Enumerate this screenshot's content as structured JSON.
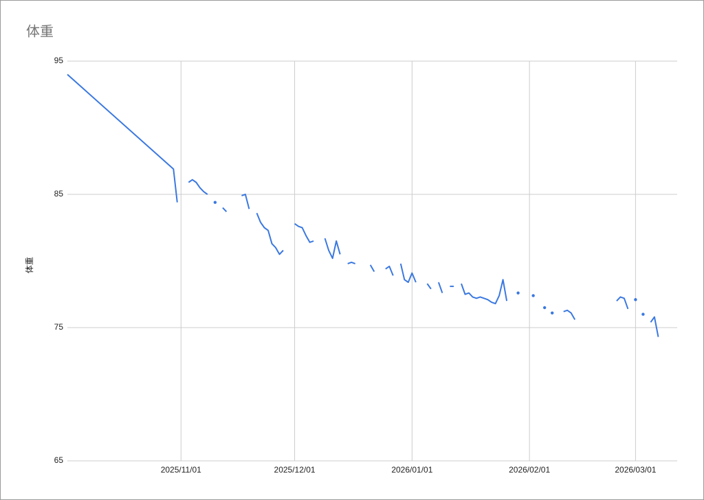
{
  "chart_data": {
    "type": "line",
    "title": "体重",
    "y_label": "体重",
    "x": [
      "2025/10/02",
      "2025/10/30",
      "2025/10/31",
      "2025/11/01",
      "2025/11/03",
      "2025/11/04",
      "2025/11/05",
      "2025/11/06",
      "2025/11/07",
      "2025/11/08",
      "2025/11/09",
      "2025/11/10",
      "2025/11/11",
      "2025/11/12",
      "2025/11/13",
      "2025/11/14",
      "2025/11/17",
      "2025/11/18",
      "2025/11/19",
      "2025/11/20",
      "2025/11/21",
      "2025/11/22",
      "2025/11/23",
      "2025/11/24",
      "2025/11/25",
      "2025/11/26",
      "2025/11/27",
      "2025/11/28",
      "2025/11/29",
      "2025/12/01",
      "2025/12/02",
      "2025/12/03",
      "2025/12/04",
      "2025/12/05",
      "2025/12/06",
      "2025/12/07",
      "2025/12/09",
      "2025/12/10",
      "2025/12/11",
      "2025/12/12",
      "2025/12/13",
      "2025/12/14",
      "2025/12/15",
      "2025/12/16",
      "2025/12/17",
      "2025/12/18",
      "2025/12/21",
      "2025/12/22",
      "2025/12/23",
      "2025/12/25",
      "2025/12/26",
      "2025/12/27",
      "2025/12/28",
      "2025/12/29",
      "2025/12/30",
      "2025/12/31",
      "2026/01/01",
      "2026/01/02",
      "2026/01/03",
      "2026/01/05",
      "2026/01/06",
      "2026/01/07",
      "2026/01/08",
      "2026/01/09",
      "2026/01/10",
      "2026/01/11",
      "2026/01/12",
      "2026/01/13",
      "2026/01/14",
      "2026/01/15",
      "2026/01/16",
      "2026/01/17",
      "2026/01/18",
      "2026/01/19",
      "2026/01/20",
      "2026/01/21",
      "2026/01/22",
      "2026/01/23",
      "2026/01/24",
      "2026/01/25",
      "2026/01/26",
      "2026/01/27",
      "2026/01/29",
      "2026/01/30",
      "2026/02/02",
      "2026/02/03",
      "2026/02/05",
      "2026/02/06",
      "2026/02/07",
      "2026/02/08",
      "2026/02/10",
      "2026/02/11",
      "2026/02/12",
      "2026/02/13",
      "2026/02/14",
      "2026/02/24",
      "2026/02/25",
      "2026/02/26",
      "2026/02/27",
      "2026/02/28",
      "2026/03/01",
      "2026/03/02",
      "2026/03/03",
      "2026/03/04",
      "2026/03/05",
      "2026/03/06",
      "2026/03/07"
    ],
    "series": [
      {
        "color": "#3a78e0",
        "values": [
          94.0,
          86.9,
          84.4,
          null,
          85.9,
          86.1,
          85.9,
          85.5,
          85.2,
          85.0,
          null,
          84.4,
          null,
          84.0,
          83.7,
          null,
          84.9,
          85.0,
          83.9,
          null,
          83.6,
          82.9,
          82.5,
          82.3,
          81.3,
          81.0,
          80.5,
          80.8,
          null,
          82.8,
          82.6,
          82.5,
          81.9,
          81.4,
          81.5,
          null,
          81.7,
          80.8,
          80.2,
          81.5,
          80.5,
          null,
          79.8,
          79.9,
          79.8,
          null,
          79.7,
          79.2,
          null,
          79.4,
          79.6,
          78.9,
          null,
          79.8,
          78.6,
          78.4,
          79.1,
          78.4,
          null,
          78.3,
          77.9,
          null,
          78.4,
          77.6,
          null,
          78.1,
          78.1,
          null,
          78.3,
          77.5,
          77.6,
          77.3,
          77.2,
          77.3,
          77.2,
          77.1,
          76.9,
          76.8,
          77.4,
          78.6,
          77.0,
          null,
          77.6,
          null,
          77.4,
          null,
          76.5,
          null,
          76.1,
          null,
          76.2,
          76.3,
          76.1,
          75.6,
          null,
          77.0,
          77.3,
          77.2,
          76.4,
          null,
          77.1,
          null,
          76.0,
          null,
          75.4,
          75.8,
          74.3
        ]
      }
    ],
    "xlim": [
      "2025/10/02",
      "2026/03/12"
    ],
    "xticks": [
      "2025/11/01",
      "2025/12/01",
      "2026/01/01",
      "2026/02/01",
      "2026/03/01"
    ],
    "ylim": [
      65,
      95
    ],
    "yticks": [
      65,
      75,
      85,
      95
    ],
    "grid": true
  }
}
